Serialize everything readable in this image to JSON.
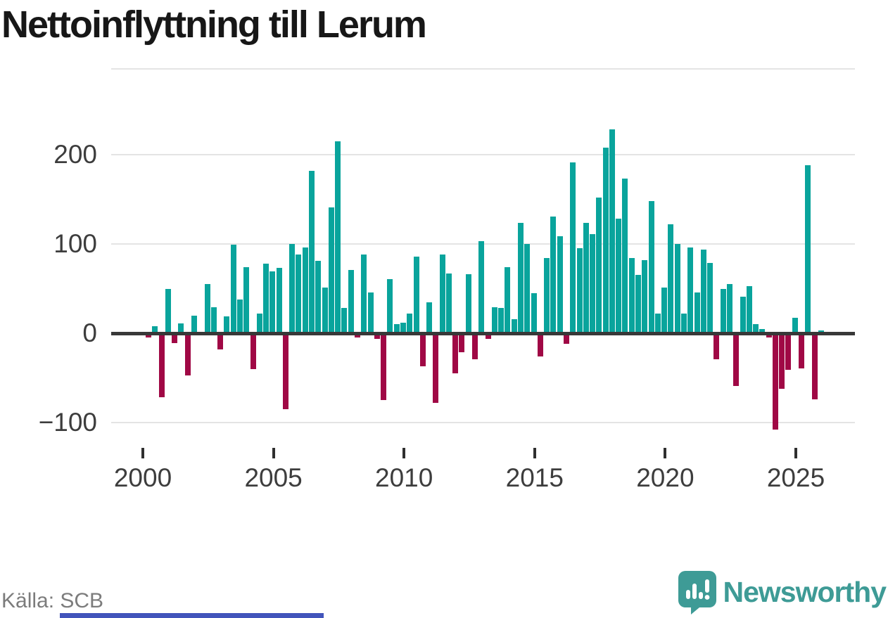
{
  "title": "Nettoinflyttning till Lerum",
  "source": "Källa: SCB",
  "brand": {
    "name": "Newsworthy"
  },
  "colors": {
    "positive_bar": "#09a49c",
    "negative_bar": "#a00845",
    "brand_teal": "#3e9b96",
    "axis_text": "#3d3d3d",
    "grid": "#e4e4e4",
    "zero_line": "#383838",
    "source_text": "#7c7c7c",
    "bottom_strip": "#4254bb"
  },
  "chart_data": {
    "type": "bar",
    "title": "Nettoinflyttning till Lerum",
    "unit_period": "quarterly",
    "grid": "horizontal",
    "ylim": [
      -120,
      295
    ],
    "y_axis": {
      "ticks": [
        {
          "value": 200,
          "label": "200"
        },
        {
          "value": 100,
          "label": "100"
        },
        {
          "value": 0,
          "label": "0"
        },
        {
          "value": -100,
          "label": "−100"
        }
      ]
    },
    "x_axis": {
      "ticks": [
        {
          "year": 2000,
          "label": "2000"
        },
        {
          "year": 2005,
          "label": "2005"
        },
        {
          "year": 2010,
          "label": "2010"
        },
        {
          "year": 2015,
          "label": "2015"
        },
        {
          "year": 2020,
          "label": "2020"
        },
        {
          "year": 2025,
          "label": "2025"
        }
      ]
    },
    "years": [
      {
        "year": 2000,
        "values": [
          -5,
          8,
          -72,
          50
        ]
      },
      {
        "year": 2001,
        "values": [
          -11,
          11,
          -47,
          20
        ]
      },
      {
        "year": 2002,
        "values": [
          2,
          55,
          29,
          -18
        ]
      },
      {
        "year": 2003,
        "values": [
          19,
          99,
          38,
          74
        ]
      },
      {
        "year": 2004,
        "values": [
          -40,
          22,
          78,
          69
        ]
      },
      {
        "year": 2005,
        "values": [
          73,
          -85,
          100,
          88
        ]
      },
      {
        "year": 2006,
        "values": [
          96,
          182,
          81,
          51
        ]
      },
      {
        "year": 2007,
        "values": [
          141,
          215,
          28,
          71
        ]
      },
      {
        "year": 2008,
        "values": [
          -5,
          88,
          46,
          -6
        ]
      },
      {
        "year": 2009,
        "values": [
          -75,
          61,
          10,
          12
        ]
      },
      {
        "year": 2010,
        "values": [
          22,
          86,
          -37,
          35
        ]
      },
      {
        "year": 2011,
        "values": [
          -78,
          88,
          67,
          -45
        ]
      },
      {
        "year": 2012,
        "values": [
          -21,
          66,
          -29,
          103
        ]
      },
      {
        "year": 2013,
        "values": [
          -6,
          29,
          28,
          74
        ]
      },
      {
        "year": 2014,
        "values": [
          16,
          124,
          100,
          45
        ]
      },
      {
        "year": 2015,
        "values": [
          -26,
          84,
          131,
          109
        ]
      },
      {
        "year": 2016,
        "values": [
          -12,
          191,
          95,
          124
        ]
      },
      {
        "year": 2017,
        "values": [
          111,
          152,
          208,
          228
        ]
      },
      {
        "year": 2018,
        "values": [
          128,
          173,
          84,
          65
        ]
      },
      {
        "year": 2019,
        "values": [
          82,
          148,
          22,
          51
        ]
      },
      {
        "year": 2020,
        "values": [
          122,
          100,
          22,
          96
        ]
      },
      {
        "year": 2021,
        "values": [
          46,
          94,
          79,
          -29
        ]
      },
      {
        "year": 2022,
        "values": [
          50,
          55,
          -59,
          41
        ]
      },
      {
        "year": 2023,
        "values": [
          53,
          10,
          5,
          -5
        ]
      },
      {
        "year": 2024,
        "values": [
          -108,
          -62,
          -41,
          17
        ]
      },
      {
        "year": 2025,
        "values": [
          -39,
          188,
          -74,
          3
        ]
      }
    ]
  }
}
